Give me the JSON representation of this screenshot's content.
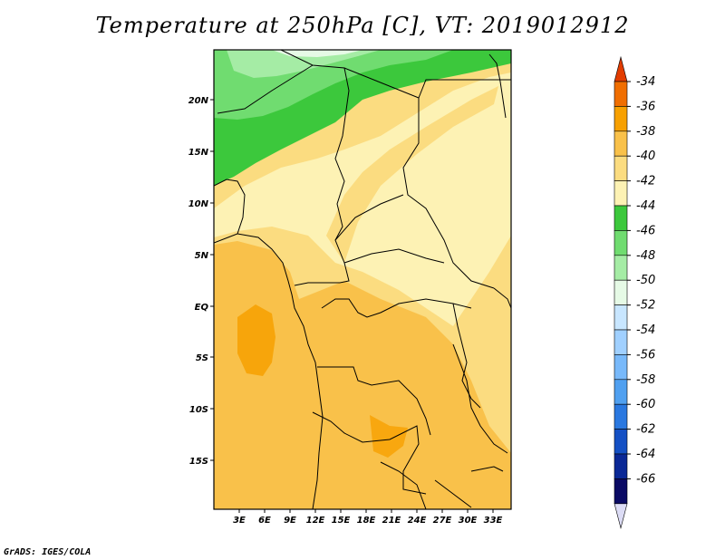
{
  "title": "Temperature at 250hPa [C], VT: 2019012912",
  "credit": "GrADS: IGES/COLA",
  "map": {
    "lat_labels": [
      "20N",
      "15N",
      "10N",
      "5N",
      "EQ",
      "5S",
      "10S",
      "15S"
    ],
    "lon_labels": [
      "3E",
      "6E",
      "9E",
      "12E",
      "15E",
      "18E",
      "21E",
      "24E",
      "27E",
      "30E",
      "33E"
    ]
  },
  "legend": {
    "levels": [
      "-34",
      "-36",
      "-38",
      "-40",
      "-42",
      "-44",
      "-46",
      "-48",
      "-50",
      "-52",
      "-54",
      "-56",
      "-58",
      "-60",
      "-62",
      "-64",
      "-66"
    ],
    "colors": [
      "#e23c00",
      "#f06e00",
      "#f7a000",
      "#f9c14a",
      "#fbdc80",
      "#fdf2b4",
      "#3cc83c",
      "#70dc70",
      "#a5eca5",
      "#e6fae6",
      "#c8e6ff",
      "#a0d0ff",
      "#78b9fa",
      "#50a0f0",
      "#2a78e0",
      "#1450c4",
      "#0a2896",
      "#0a0a64",
      "#dcdcf5"
    ]
  },
  "colors": {
    "land_default": "#fbdc80",
    "warm": "#f9c14a",
    "warmer": "#f7a000",
    "pale": "#fdf2b4",
    "green": "#3cc83c",
    "light_green": "#70dc70",
    "lighter_green": "#a5eca5"
  }
}
